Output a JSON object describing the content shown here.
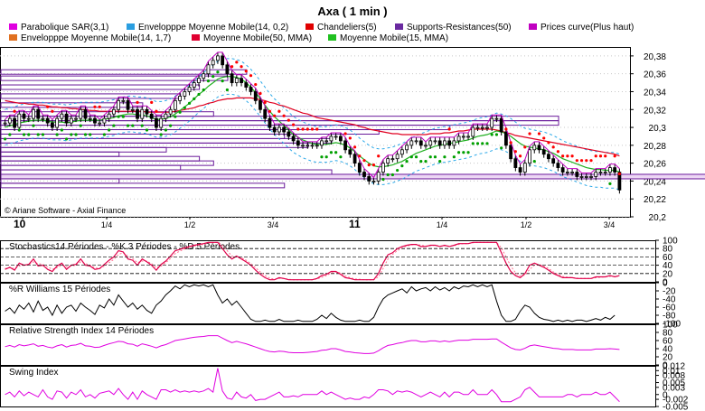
{
  "title": "Axa  ( 1 min )",
  "legend": [
    {
      "label": "Parabolique SAR(3,1)",
      "color": "#e000e0"
    },
    {
      "label": "Envelopppe Moyenne Mobile(14, 0,2)",
      "color": "#2a9ee0"
    },
    {
      "label": "Chandeliers(5)",
      "color": "#e00000"
    },
    {
      "label": "Supports-Resistances(50)",
      "color": "#6a2aa0"
    },
    {
      "label": "Prices curve(Plus haut)",
      "color": "#c000c0"
    },
    {
      "label": "Envelopppe Moyenne Mobile(14, 1,7)",
      "color": "#e07020"
    },
    {
      "label": "Moyenne Mobile(50, MMA)",
      "color": "#e00030"
    },
    {
      "label": "Moyenne Mobile(15, MMA)",
      "color": "#20c020"
    }
  ],
  "copyright": "© Ariane Software - Axial Finance",
  "colors": {
    "candle": "#000000",
    "sar_green": "#00a000",
    "sar_red": "#ff0000",
    "envelope": "#2aa8e8",
    "ma50": "#e00020",
    "ma15": "#20b020",
    "price_curve": "#c000c0",
    "sr_outline": "#6a1a9a",
    "sr_fill": "#ecd6f4",
    "stoch_k": "#e0004a",
    "stoch_d": "#ff7090",
    "oscillator": "#e000e0",
    "williams": "#000000"
  },
  "chart_data": [
    {
      "type": "line",
      "name": "price_panel",
      "x_ticks": [
        "10",
        "1/4",
        "1/2",
        "3/4",
        "11",
        "1/4",
        "1/2",
        "3/4"
      ],
      "y_ticks": [
        "20,38",
        "20,36",
        "20,34",
        "20,32",
        "20,3",
        "20,28",
        "20,26",
        "20,24",
        "20,22",
        "20,2"
      ],
      "ylim": [
        20.2,
        20.39
      ],
      "close": [
        20.305,
        20.31,
        20.3,
        20.315,
        20.31,
        20.31,
        20.32,
        20.31,
        20.31,
        20.305,
        20.3,
        20.31,
        20.315,
        20.305,
        20.31,
        20.31,
        20.32,
        20.31,
        20.31,
        20.305,
        20.305,
        20.31,
        20.315,
        20.32,
        20.33,
        20.33,
        20.32,
        20.32,
        20.31,
        20.32,
        20.315,
        20.31,
        20.3,
        20.31,
        20.315,
        20.32,
        20.33,
        20.335,
        20.34,
        20.345,
        20.35,
        20.355,
        20.36,
        20.37,
        20.375,
        20.38,
        20.37,
        20.36,
        20.35,
        20.355,
        20.35,
        20.345,
        20.34,
        20.33,
        20.32,
        20.31,
        20.3,
        20.295,
        20.3,
        20.295,
        20.29,
        20.285,
        20.28,
        20.28,
        20.28,
        20.28,
        20.28,
        20.285,
        20.285,
        20.29,
        20.29,
        20.285,
        20.275,
        20.27,
        20.26,
        20.25,
        20.245,
        20.24,
        20.24,
        20.25,
        20.26,
        20.265,
        20.265,
        20.27,
        20.275,
        20.28,
        20.285,
        20.285,
        20.28,
        20.28,
        20.285,
        20.285,
        20.28,
        20.285,
        20.28,
        20.285,
        20.29,
        20.29,
        20.29,
        20.3,
        20.3,
        20.3,
        20.3,
        20.31,
        20.31,
        20.295,
        20.28,
        20.265,
        20.255,
        20.25,
        20.26,
        20.275,
        20.28,
        20.275,
        20.27,
        20.265,
        20.26,
        20.255,
        20.25,
        20.25,
        20.25,
        20.245,
        20.245,
        20.245,
        20.245,
        20.25,
        20.25,
        20.25,
        20.255,
        20.25,
        20.23
      ],
      "ma15": [
        20.3,
        20.302,
        20.303,
        20.305,
        20.306,
        20.307,
        20.308,
        20.308,
        20.308,
        20.307,
        20.306,
        20.306,
        20.306,
        20.305,
        20.306,
        20.307,
        20.308,
        20.308,
        20.308,
        20.308,
        20.308,
        20.309,
        20.31,
        20.311,
        20.313,
        20.314,
        20.315,
        20.315,
        20.314,
        20.314,
        20.313,
        20.311,
        20.309,
        20.309,
        20.31,
        20.312,
        20.315,
        20.319,
        20.323,
        20.327,
        20.332,
        20.337,
        20.341,
        20.346,
        20.35,
        20.354,
        20.356,
        20.357,
        20.357,
        20.356,
        20.354,
        20.35,
        20.345,
        20.339,
        20.332,
        20.325,
        20.318,
        20.312,
        20.307,
        20.302,
        20.297,
        20.292,
        20.289,
        20.286,
        20.284,
        20.282,
        20.281,
        20.281,
        20.281,
        20.282,
        20.283,
        20.282,
        20.28,
        20.277,
        20.273,
        20.268,
        20.264,
        20.26,
        20.257,
        20.256,
        20.256,
        20.257,
        20.258,
        20.26,
        20.262,
        20.265,
        20.268,
        20.271,
        20.273,
        20.275,
        20.277,
        20.279,
        20.28,
        20.281,
        20.282,
        20.283,
        20.284,
        20.285,
        20.286,
        20.288,
        20.29,
        20.291,
        20.292,
        20.294,
        20.296,
        20.295,
        20.293,
        20.29,
        20.286,
        20.282,
        20.279,
        20.278,
        20.277,
        20.276,
        20.275,
        20.273,
        20.271,
        20.268,
        20.265,
        20.263,
        20.261,
        20.259,
        20.257,
        20.255,
        20.254,
        20.253,
        20.253,
        20.252,
        20.252,
        20.252,
        20.25
      ],
      "ma50": [
        20.33,
        20.329,
        20.328,
        20.327,
        20.327,
        20.326,
        20.326,
        20.325,
        20.325,
        20.324,
        20.323,
        20.323,
        20.322,
        20.322,
        20.321,
        20.321,
        20.32,
        20.32,
        20.319,
        20.319,
        20.318,
        20.318,
        20.318,
        20.318,
        20.318,
        20.318,
        20.318,
        20.318,
        20.318,
        20.318,
        20.317,
        20.317,
        20.317,
        20.317,
        20.317,
        20.317,
        20.318,
        20.319,
        20.32,
        20.321,
        20.322,
        20.324,
        20.325,
        20.327,
        20.328,
        20.33,
        20.331,
        20.332,
        20.332,
        20.333,
        20.333,
        20.333,
        20.333,
        20.332,
        20.331,
        20.33,
        20.328,
        20.327,
        20.325,
        20.324,
        20.322,
        20.32,
        20.318,
        20.316,
        20.315,
        20.313,
        20.311,
        20.31,
        20.309,
        20.308,
        20.307,
        20.306,
        20.305,
        20.304,
        20.303,
        20.301,
        20.3,
        20.298,
        20.297,
        20.296,
        20.295,
        20.294,
        20.293,
        20.293,
        20.292,
        20.292,
        20.292,
        20.292,
        20.292,
        20.292,
        20.293,
        20.293,
        20.293,
        20.294,
        20.294,
        20.295,
        20.296,
        20.296,
        20.297,
        20.298,
        20.298,
        20.298,
        20.298,
        20.298,
        20.297,
        20.296,
        20.294,
        20.293,
        20.291,
        20.29,
        20.289,
        20.288,
        20.287,
        20.286,
        20.285,
        20.284,
        20.283,
        20.282,
        20.281,
        20.28,
        20.279,
        20.278,
        20.277,
        20.276,
        20.275,
        20.274,
        20.273,
        20.272,
        20.271,
        20.27,
        20.268
      ],
      "sr_levels": [
        {
          "price": 20.362,
          "length_bars": 52
        },
        {
          "price": 20.355,
          "length_bars": 48
        },
        {
          "price": 20.345,
          "length_bars": 42
        },
        {
          "price": 20.335,
          "length_bars": 38
        },
        {
          "price": 20.325,
          "length_bars": 30
        },
        {
          "price": 20.315,
          "length_bars": 45
        },
        {
          "price": 20.31,
          "length_bars": 118
        },
        {
          "price": 20.305,
          "length_bars": 118
        },
        {
          "price": 20.3,
          "length_bars": 95
        },
        {
          "price": 20.295,
          "length_bars": 80
        },
        {
          "price": 20.29,
          "length_bars": 60
        },
        {
          "price": 20.285,
          "length_bars": 70
        },
        {
          "price": 20.28,
          "length_bars": 65
        },
        {
          "price": 20.275,
          "length_bars": 35
        },
        {
          "price": 20.27,
          "length_bars": 25
        },
        {
          "price": 20.265,
          "length_bars": 42
        },
        {
          "price": 20.26,
          "length_bars": 45
        },
        {
          "price": 20.255,
          "length_bars": 38
        },
        {
          "price": 20.25,
          "length_bars": 70
        },
        {
          "price": 20.245,
          "length_bars": 160
        },
        {
          "price": 20.24,
          "length_bars": 25
        },
        {
          "price": 20.235,
          "length_bars": 60
        }
      ]
    },
    {
      "type": "line",
      "name": "stochastics",
      "title": "Stochastics14 Périodes  -  %K 3 Périodes  -  %D 5 Périodes",
      "y_ticks": [
        "100",
        "80",
        "60",
        "40",
        "20",
        "0"
      ],
      "ylim": [
        0,
        100
      ],
      "k": [
        30,
        35,
        28,
        45,
        40,
        42,
        55,
        38,
        40,
        30,
        25,
        38,
        45,
        30,
        40,
        42,
        55,
        40,
        38,
        30,
        32,
        42,
        52,
        60,
        75,
        72,
        55,
        52,
        40,
        55,
        48,
        40,
        28,
        42,
        50,
        62,
        75,
        78,
        82,
        85,
        88,
        90,
        92,
        95,
        95,
        95,
        80,
        65,
        55,
        62,
        55,
        48,
        40,
        28,
        18,
        10,
        5,
        5,
        10,
        8,
        5,
        5,
        5,
        5,
        5,
        5,
        8,
        15,
        18,
        25,
        25,
        18,
        10,
        8,
        5,
        5,
        5,
        5,
        5,
        20,
        45,
        65,
        70,
        80,
        85,
        88,
        90,
        90,
        85,
        85,
        88,
        88,
        85,
        88,
        85,
        88,
        92,
        92,
        92,
        95,
        95,
        95,
        95,
        95,
        95,
        70,
        45,
        25,
        15,
        10,
        20,
        40,
        45,
        40,
        35,
        28,
        20,
        15,
        10,
        10,
        10,
        8,
        8,
        8,
        8,
        12,
        12,
        12,
        15,
        12,
        15
      ],
      "d": [
        32,
        34,
        32,
        38,
        40,
        42,
        48,
        44,
        42,
        36,
        30,
        34,
        40,
        36,
        38,
        40,
        48,
        44,
        40,
        34,
        32,
        38,
        46,
        54,
        66,
        70,
        62,
        56,
        46,
        50,
        50,
        44,
        34,
        38,
        46,
        56,
        68,
        74,
        79,
        83,
        86,
        88,
        90,
        93,
        94,
        95,
        88,
        75,
        62,
        60,
        58,
        52,
        44,
        34,
        24,
        15,
        9,
        6,
        8,
        8,
        6,
        5,
        5,
        5,
        5,
        5,
        7,
        11,
        15,
        21,
        24,
        21,
        14,
        10,
        7,
        6,
        5,
        5,
        5,
        12,
        32,
        55,
        66,
        75,
        82,
        86,
        89,
        90,
        88,
        86,
        87,
        88,
        86,
        87,
        86,
        87,
        90,
        92,
        92,
        94,
        95,
        95,
        95,
        95,
        95,
        82,
        60,
        38,
        22,
        14,
        16,
        30,
        40,
        42,
        38,
        32,
        24,
        18,
        13,
        11,
        10,
        9,
        8,
        8,
        8,
        10,
        11,
        12,
        13,
        13,
        14
      ]
    },
    {
      "type": "line",
      "name": "williams",
      "title": "%R Williams 15 Périodes",
      "y_ticks": [
        "0",
        "-20",
        "-40",
        "-60",
        "-80",
        "-100"
      ],
      "ylim": [
        -100,
        0
      ],
      "values": [
        -70,
        -62,
        -75,
        -55,
        -65,
        -50,
        -72,
        -45,
        -68,
        -60,
        -80,
        -55,
        -75,
        -60,
        -55,
        -70,
        -50,
        -60,
        -68,
        -78,
        -55,
        -62,
        -40,
        -55,
        -30,
        -45,
        -60,
        -50,
        -65,
        -55,
        -68,
        -75,
        -55,
        -45,
        -30,
        -20,
        -8,
        -15,
        -5,
        -10,
        -5,
        -8,
        -5,
        -10,
        -5,
        -30,
        -50,
        -40,
        -55,
        -45,
        -60,
        -75,
        -90,
        -95,
        -95,
        -92,
        -95,
        -95,
        -90,
        -95,
        -95,
        -95,
        -92,
        -95,
        -95,
        -95,
        -90,
        -80,
        -88,
        -75,
        -85,
        -92,
        -95,
        -95,
        -95,
        -92,
        -95,
        -95,
        -85,
        -60,
        -40,
        -30,
        -25,
        -20,
        -15,
        -25,
        -10,
        -20,
        -15,
        -12,
        -20,
        -10,
        -18,
        -12,
        -20,
        -10,
        -15,
        -8,
        -10,
        -5,
        -10,
        -5,
        -10,
        -5,
        -45,
        -80,
        -95,
        -95,
        -90,
        -70,
        -55,
        -60,
        -75,
        -85,
        -90,
        -92,
        -95,
        -92,
        -95,
        -92,
        -95,
        -92,
        -92,
        -95,
        -92,
        -88,
        -92,
        -85,
        -90,
        -80
      ],
      "values_label": ""
    },
    {
      "type": "line",
      "name": "rsi",
      "title": "Relative Strength Index 14 Périodes",
      "y_ticks": [
        "100",
        "80",
        "60",
        "40",
        "20",
        "0"
      ],
      "ylim": [
        0,
        100
      ],
      "values": [
        45,
        48,
        44,
        50,
        47,
        49,
        52,
        46,
        48,
        44,
        42,
        47,
        50,
        44,
        48,
        49,
        53,
        47,
        46,
        43,
        44,
        48,
        52,
        55,
        58,
        57,
        52,
        51,
        46,
        52,
        49,
        46,
        42,
        47,
        50,
        55,
        60,
        62,
        64,
        66,
        68,
        69,
        70,
        72,
        72,
        72,
        66,
        60,
        55,
        58,
        55,
        52,
        48,
        44,
        40,
        36,
        33,
        32,
        34,
        33,
        31,
        30,
        30,
        30,
        31,
        32,
        33,
        36,
        37,
        40,
        40,
        37,
        33,
        32,
        30,
        29,
        28,
        28,
        29,
        35,
        42,
        48,
        50,
        53,
        55,
        58,
        60,
        60,
        57,
        57,
        59,
        59,
        57,
        59,
        57,
        59,
        61,
        61,
        61,
        63,
        63,
        63,
        63,
        64,
        64,
        56,
        49,
        42,
        38,
        37,
        41,
        47,
        49,
        47,
        45,
        43,
        41,
        40,
        38,
        38,
        38,
        37,
        37,
        37,
        37,
        39,
        39,
        39,
        40,
        39,
        38
      ]
    },
    {
      "type": "line",
      "name": "swing_index",
      "title": "Swing Index",
      "y_ticks": [
        "0.012",
        "0.01",
        "0.008",
        "0.005",
        "0.003",
        "0",
        "-0.002",
        "-0.005"
      ],
      "ylim": [
        -0.005,
        0.012
      ],
      "values": [
        0.0,
        0.001,
        -0.001,
        0.0015,
        -0.0005,
        0.001,
        0.0,
        -0.001,
        0.002,
        -0.001,
        -0.002,
        0.0015,
        0.001,
        -0.0015,
        0.001,
        0.0,
        0.002,
        -0.001,
        0.0,
        -0.0015,
        0.0005,
        0.001,
        0.0015,
        0.0,
        0.0025,
        0.0,
        -0.002,
        0.001,
        -0.002,
        0.0015,
        0.0,
        -0.001,
        -0.002,
        0.002,
        0.002,
        0.001,
        0.002,
        0.001,
        0.0015,
        0.001,
        0.0015,
        0.001,
        0.0015,
        0.0025,
        0.001,
        0.011,
        0.0015,
        -0.0015,
        -0.002,
        0.001,
        -0.001,
        -0.0015,
        0.0,
        -0.0025,
        -0.002,
        -0.002,
        -0.001,
        0.0,
        0.001,
        -0.001,
        -0.001,
        -0.0005,
        -0.001,
        0.0,
        0.0,
        0.0,
        0.0,
        0.0015,
        0.0,
        0.001,
        0.0,
        -0.001,
        -0.002,
        -0.0015,
        -0.002,
        -0.002,
        -0.001,
        -0.0015,
        0.0,
        0.002,
        0.002,
        0.0015,
        0.0,
        0.0015,
        0.001,
        0.0015,
        0.001,
        0.0,
        -0.001,
        0.0,
        0.001,
        0.0,
        -0.001,
        0.001,
        -0.001,
        0.001,
        0.001,
        0.0,
        0.0,
        0.002,
        0.0,
        0.0,
        0.0,
        0.002,
        0.0,
        -0.003,
        -0.003,
        -0.003,
        -0.002,
        -0.001,
        0.002,
        0.003,
        0.001,
        -0.001,
        -0.001,
        -0.001,
        -0.001,
        -0.001,
        -0.001,
        0.0,
        0.0,
        -0.001,
        0.0,
        0.0,
        0.0,
        0.001,
        0.0,
        0.0,
        0.001,
        -0.001,
        -0.003
      ]
    }
  ]
}
